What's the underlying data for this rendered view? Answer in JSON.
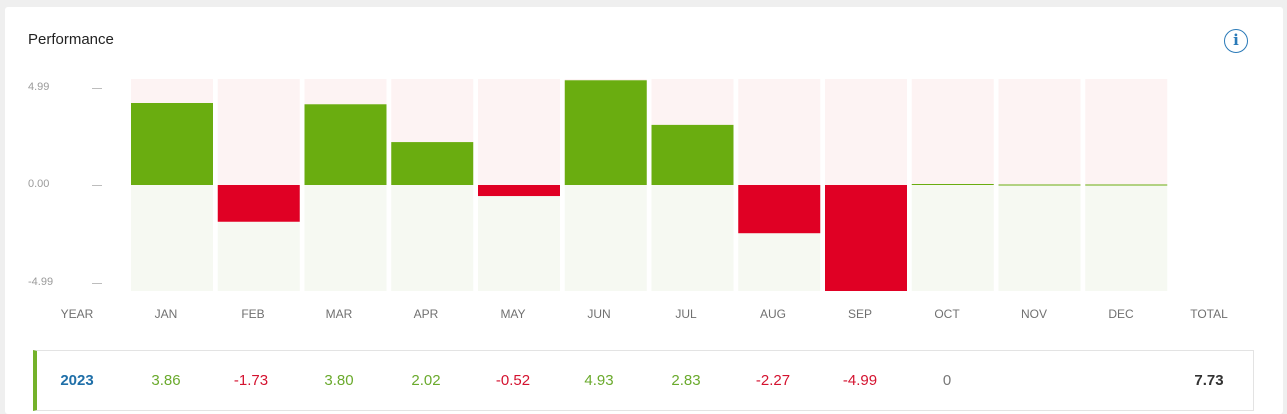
{
  "title": "Performance",
  "info_icon": "info-icon",
  "info_glyph": "i",
  "colors": {
    "positive": "#6aad10",
    "negative": "#e00024",
    "positive_bg": "#f6f9f2",
    "negative_bg": "#fdf3f3",
    "year_link": "#1f6fa8"
  },
  "chart_data": {
    "type": "bar",
    "categories": [
      "JAN",
      "FEB",
      "MAR",
      "APR",
      "MAY",
      "JUN",
      "JUL",
      "AUG",
      "SEP",
      "OCT",
      "NOV",
      "DEC"
    ],
    "values": [
      3.86,
      -1.73,
      3.8,
      2.02,
      -0.52,
      4.93,
      2.83,
      -2.27,
      -4.99,
      0,
      null,
      null
    ],
    "ylim": [
      -4.99,
      4.99
    ],
    "yticks": [
      "4.99",
      "0.00",
      "-4.99"
    ],
    "grid": false
  },
  "table": {
    "headers": {
      "year": "YEAR",
      "months": [
        "JAN",
        "FEB",
        "MAR",
        "APR",
        "MAY",
        "JUN",
        "JUL",
        "AUG",
        "SEP",
        "OCT",
        "NOV",
        "DEC"
      ],
      "total": "TOTAL"
    },
    "row": {
      "year": "2023",
      "values": [
        "3.86",
        "-1.73",
        "3.80",
        "2.02",
        "-0.52",
        "4.93",
        "2.83",
        "-2.27",
        "-4.99",
        "0",
        "",
        ""
      ],
      "total": "7.73"
    }
  }
}
